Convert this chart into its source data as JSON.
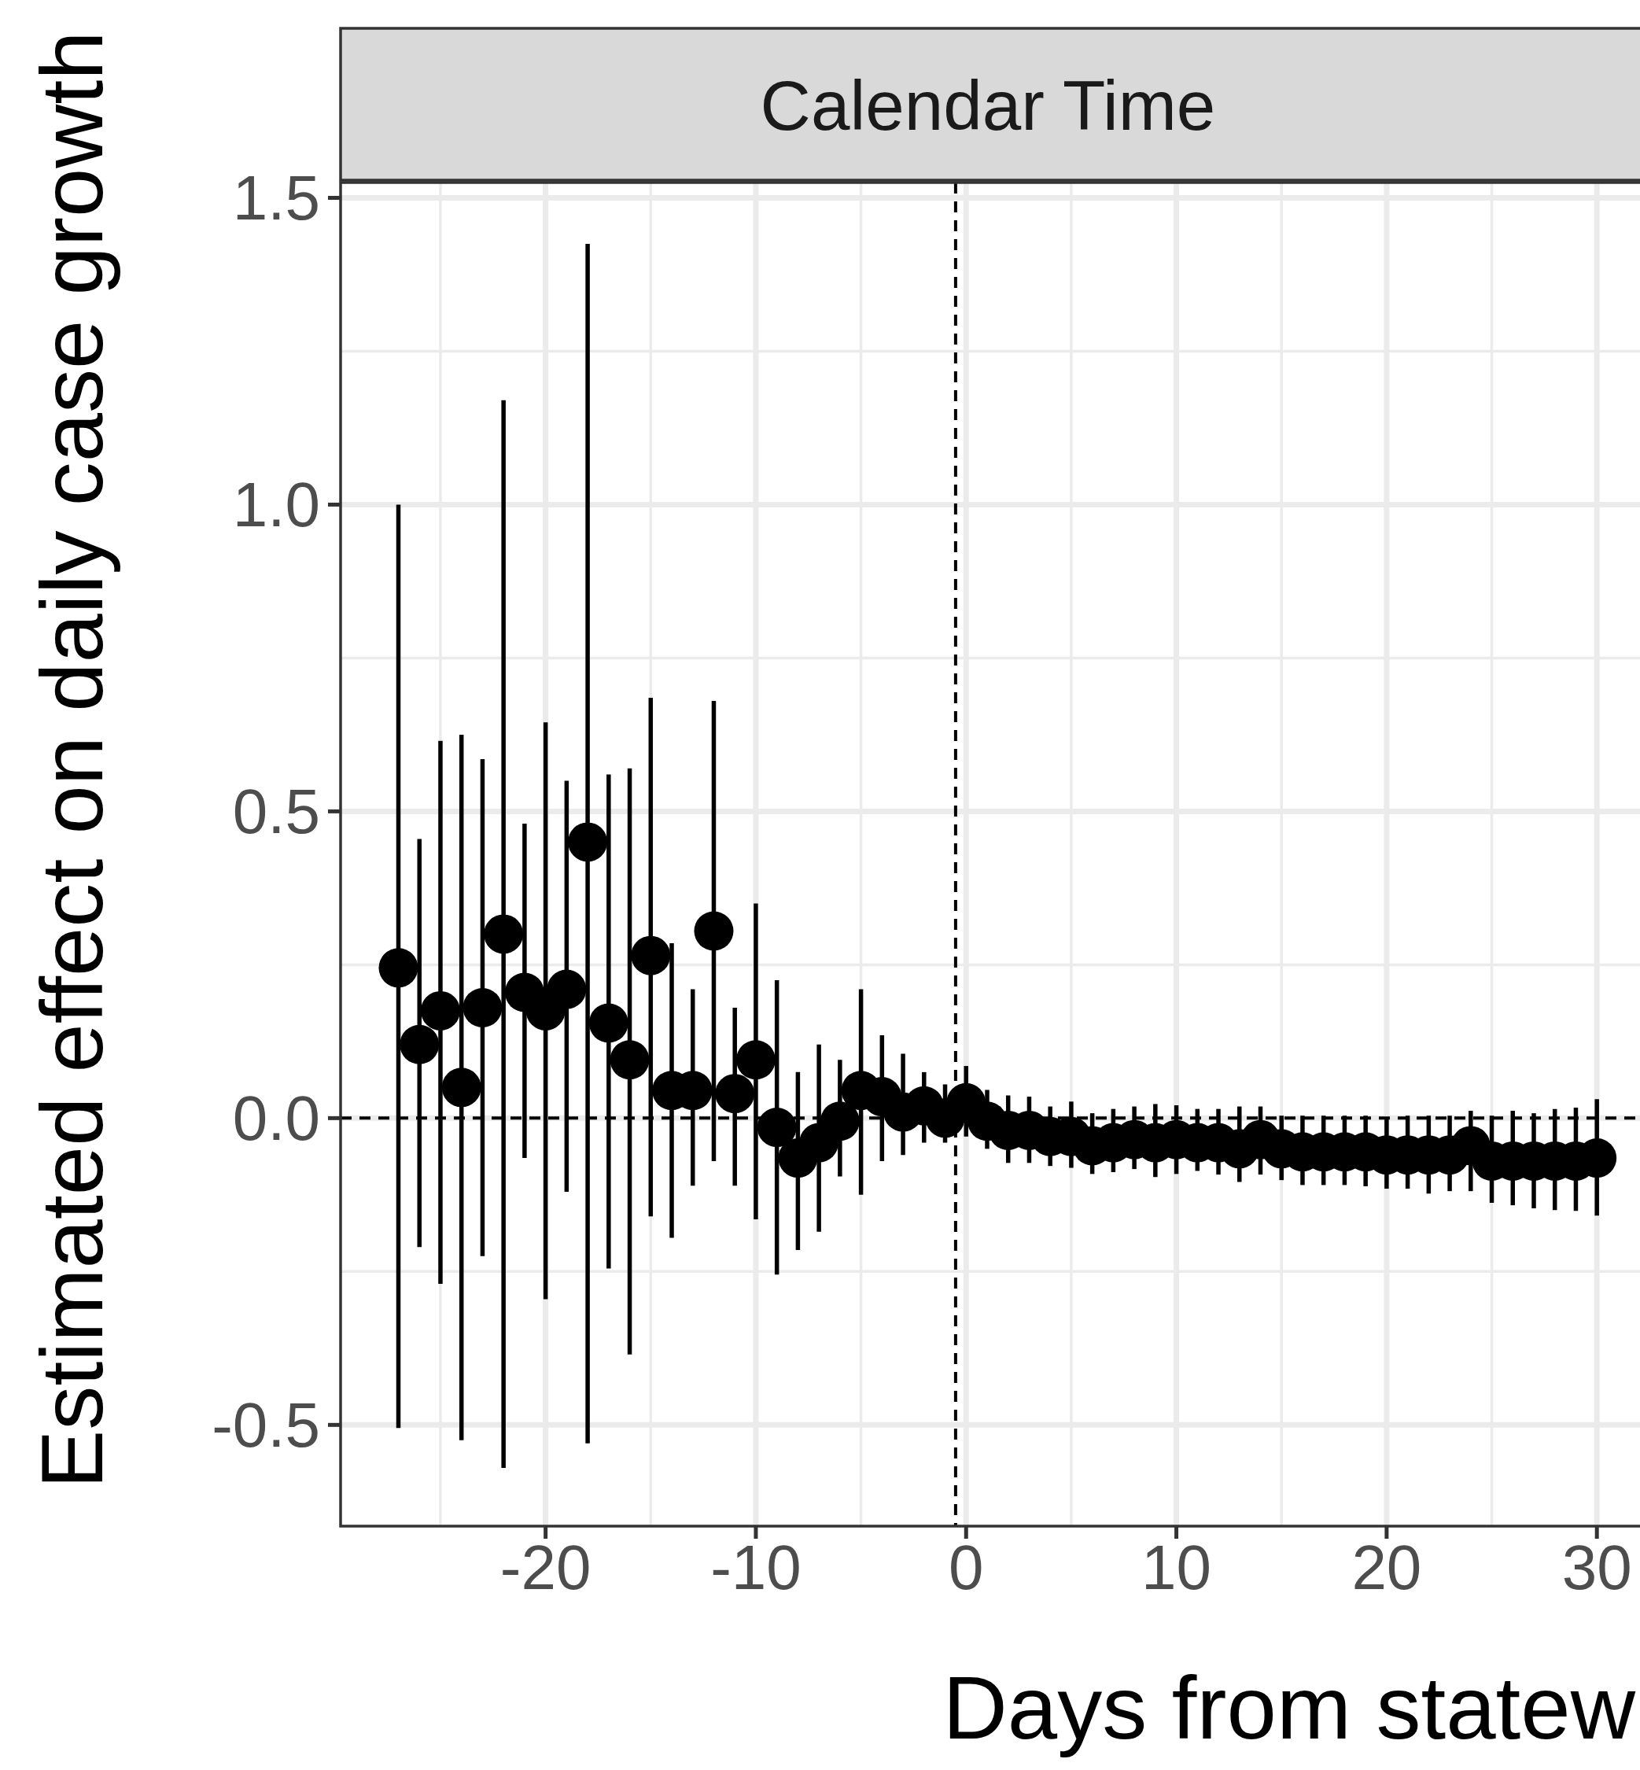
{
  "chart_data": {
    "type": "scatter",
    "title": "Calendar Time",
    "xlabel": "Days from statew",
    "ylabel": "Estimated effect on daily case growth",
    "x": [
      -27,
      -26,
      -25,
      -24,
      -23,
      -22,
      -21,
      -20,
      -19,
      -18,
      -17,
      -16,
      -15,
      -14,
      -13,
      -12,
      -11,
      -10,
      -9,
      -8,
      -7,
      -6,
      -5,
      -4,
      -3,
      -2,
      -1,
      0,
      1,
      2,
      3,
      4,
      5,
      6,
      7,
      8,
      9,
      10,
      11,
      12,
      13,
      14,
      15,
      16,
      17,
      18,
      19,
      20,
      21,
      22,
      23,
      24,
      25,
      26,
      27,
      28,
      29,
      30
    ],
    "values": [
      0.245,
      0.12,
      0.175,
      0.05,
      0.18,
      0.3,
      0.205,
      0.175,
      0.21,
      0.45,
      0.155,
      0.095,
      0.265,
      0.045,
      0.045,
      0.305,
      0.04,
      0.095,
      -0.015,
      -0.065,
      -0.04,
      -0.005,
      0.045,
      0.035,
      0.01,
      0.02,
      0.0,
      0.025,
      -0.005,
      -0.02,
      -0.02,
      -0.03,
      -0.03,
      -0.045,
      -0.04,
      -0.035,
      -0.04,
      -0.035,
      -0.04,
      -0.04,
      -0.05,
      -0.035,
      -0.05,
      -0.055,
      -0.055,
      -0.055,
      -0.055,
      -0.06,
      -0.06,
      -0.06,
      -0.06,
      -0.045,
      -0.07,
      -0.07,
      -0.07,
      -0.07,
      -0.07,
      -0.065
    ],
    "errors": [
      [
        -0.505,
        1.0
      ],
      [
        -0.21,
        0.455
      ],
      [
        -0.27,
        0.615
      ],
      [
        -0.525,
        0.625
      ],
      [
        -0.225,
        0.585
      ],
      [
        -0.57,
        1.17
      ],
      [
        -0.065,
        0.48
      ],
      [
        -0.295,
        0.645
      ],
      [
        -0.12,
        0.55
      ],
      [
        -0.53,
        1.425
      ],
      [
        -0.245,
        0.56
      ],
      [
        -0.385,
        0.57
      ],
      [
        -0.16,
        0.685
      ],
      [
        -0.195,
        0.285
      ],
      [
        -0.11,
        0.21
      ],
      [
        -0.07,
        0.68
      ],
      [
        -0.11,
        0.18
      ],
      [
        -0.165,
        0.35
      ],
      [
        -0.255,
        0.225
      ],
      [
        -0.215,
        0.075
      ],
      [
        -0.185,
        0.12
      ],
      [
        -0.095,
        0.095
      ],
      [
        -0.125,
        0.21
      ],
      [
        -0.07,
        0.135
      ],
      [
        -0.06,
        0.105
      ],
      [
        -0.04,
        0.075
      ],
      [
        -0.04,
        0.055
      ],
      [
        -0.03,
        0.085
      ],
      [
        -0.05,
        0.046
      ],
      [
        -0.073,
        0.037
      ],
      [
        -0.073,
        0.035
      ],
      [
        -0.078,
        0.019
      ],
      [
        -0.081,
        0.027
      ],
      [
        -0.091,
        0.008
      ],
      [
        -0.088,
        0.015
      ],
      [
        -0.083,
        0.019
      ],
      [
        -0.096,
        0.023
      ],
      [
        -0.091,
        0.021
      ],
      [
        -0.086,
        0.015
      ],
      [
        -0.092,
        0.015
      ],
      [
        -0.104,
        0.019
      ],
      [
        -0.092,
        0.019
      ],
      [
        -0.101,
        0.004
      ],
      [
        -0.109,
        0.004
      ],
      [
        -0.109,
        0.004
      ],
      [
        -0.109,
        0.004
      ],
      [
        -0.111,
        0.004
      ],
      [
        -0.115,
        0.0
      ],
      [
        -0.115,
        0.004
      ],
      [
        -0.123,
        0.004
      ],
      [
        -0.119,
        0.004
      ],
      [
        -0.119,
        0.012
      ],
      [
        -0.138,
        0.004
      ],
      [
        -0.142,
        0.012
      ],
      [
        -0.147,
        0.008
      ],
      [
        -0.15,
        0.015
      ],
      [
        -0.151,
        0.017
      ],
      [
        -0.159,
        0.031
      ]
    ],
    "color": "#000000",
    "marker": "circle",
    "xlim": [
      -29.75,
      32.2
    ],
    "xticks": [
      -20,
      -10,
      0,
      10,
      20,
      30
    ],
    "ylim": [
      -0.665,
      1.525
    ],
    "yticks": [
      {
        "value": -0.5,
        "label": "-0.5"
      },
      {
        "value": 0,
        "label": "0.0"
      },
      {
        "value": 0.5,
        "label": "0.5"
      },
      {
        "value": 1,
        "label": "1.0"
      },
      {
        "value": 1.5,
        "label": "1.5"
      }
    ],
    "ref_lines": [
      {
        "axis": "y",
        "value": 0,
        "line_style": "dashed"
      },
      {
        "axis": "x",
        "value": -0.5,
        "line_style": "dashed"
      }
    ],
    "grid": true
  }
}
